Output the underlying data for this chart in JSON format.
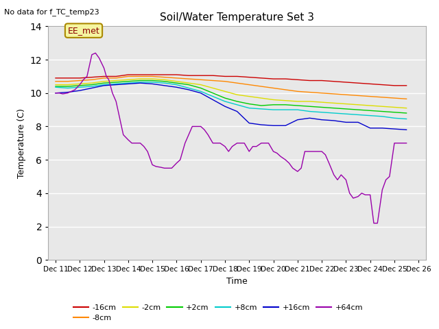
{
  "title": "Soil/Water Temperature Set 3",
  "subtitle": "No data for f_TC_temp23",
  "xlabel": "Time",
  "ylabel": "Temperature (C)",
  "ylim": [
    0,
    14
  ],
  "yticks": [
    0,
    2,
    4,
    6,
    8,
    10,
    12,
    14
  ],
  "annotation_box": "EE_met",
  "bg_color": "#ffffff",
  "plot_bg_color": "#e8e8e8",
  "grid_color": "#ffffff",
  "xtick_labels": [
    "Dec 11",
    "Dec 12",
    "Dec 13",
    "Dec 14",
    "Dec 15",
    "Dec 16",
    "Dec 17",
    "Dec 18",
    "Dec 19",
    "Dec 20",
    "Dec 21",
    "Dec 22",
    "Dec 23",
    "Dec 24",
    "Dec 25",
    "Dec 26"
  ],
  "series": [
    {
      "label": "-16cm",
      "color": "#cc0000",
      "x": [
        0,
        0.5,
        1,
        1.5,
        2,
        2.5,
        3,
        3.5,
        4,
        4.5,
        5,
        5.5,
        6,
        6.5,
        7,
        7.5,
        8,
        8.5,
        9,
        9.5,
        10,
        10.5,
        11,
        11.5,
        12,
        12.5,
        13,
        13.5,
        14,
        14.5
      ],
      "y": [
        10.9,
        10.9,
        10.9,
        10.95,
        11.0,
        11.0,
        11.1,
        11.1,
        11.1,
        11.1,
        11.1,
        11.05,
        11.05,
        11.05,
        11.0,
        11.0,
        10.95,
        10.9,
        10.85,
        10.85,
        10.8,
        10.75,
        10.75,
        10.7,
        10.65,
        10.6,
        10.55,
        10.5,
        10.45,
        10.45
      ]
    },
    {
      "label": "-8cm",
      "color": "#ff8800",
      "x": [
        0,
        0.5,
        1,
        1.5,
        2,
        2.5,
        3,
        3.5,
        4,
        4.5,
        5,
        5.5,
        6,
        6.5,
        7,
        7.5,
        8,
        8.5,
        9,
        9.5,
        10,
        10.5,
        11,
        11.5,
        12,
        12.5,
        13,
        13.5,
        14,
        14.5
      ],
      "y": [
        10.7,
        10.7,
        10.75,
        10.8,
        10.9,
        10.9,
        11.0,
        11.0,
        11.0,
        10.95,
        10.9,
        10.85,
        10.8,
        10.75,
        10.7,
        10.6,
        10.5,
        10.4,
        10.3,
        10.2,
        10.1,
        10.05,
        10.0,
        9.95,
        9.9,
        9.85,
        9.8,
        9.75,
        9.7,
        9.65
      ]
    },
    {
      "label": "-2cm",
      "color": "#dddd00",
      "x": [
        0,
        0.5,
        1,
        1.5,
        2,
        2.5,
        3,
        3.5,
        4,
        4.5,
        5,
        5.5,
        6,
        6.5,
        7,
        7.5,
        8,
        8.5,
        9,
        9.5,
        10,
        10.5,
        11,
        11.5,
        12,
        12.5,
        13,
        13.5,
        14,
        14.5
      ],
      "y": [
        10.5,
        10.5,
        10.55,
        10.6,
        10.7,
        10.75,
        10.8,
        10.85,
        10.85,
        10.8,
        10.7,
        10.6,
        10.5,
        10.3,
        10.1,
        9.9,
        9.8,
        9.7,
        9.6,
        9.55,
        9.5,
        9.5,
        9.45,
        9.4,
        9.35,
        9.3,
        9.25,
        9.2,
        9.15,
        9.1
      ]
    },
    {
      "label": "+2cm",
      "color": "#00cc00",
      "x": [
        0,
        0.5,
        1,
        1.5,
        2,
        2.5,
        3,
        3.5,
        4,
        4.5,
        5,
        5.5,
        6,
        6.5,
        7,
        7.5,
        8,
        8.5,
        9,
        9.5,
        10,
        10.5,
        11,
        11.5,
        12,
        12.5,
        13,
        13.5,
        14,
        14.5
      ],
      "y": [
        10.4,
        10.4,
        10.45,
        10.5,
        10.6,
        10.65,
        10.7,
        10.75,
        10.75,
        10.7,
        10.6,
        10.5,
        10.3,
        10.0,
        9.7,
        9.5,
        9.35,
        9.25,
        9.3,
        9.3,
        9.25,
        9.2,
        9.15,
        9.1,
        9.05,
        9.0,
        8.95,
        8.9,
        8.85,
        8.8
      ]
    },
    {
      "label": "+8cm",
      "color": "#00cccc",
      "x": [
        0,
        0.5,
        1,
        1.5,
        2,
        2.5,
        3,
        3.5,
        4,
        4.5,
        5,
        5.5,
        6,
        6.5,
        7,
        7.5,
        8,
        8.5,
        9,
        9.5,
        10,
        10.5,
        11,
        11.5,
        12,
        12.5,
        13,
        13.5,
        14,
        14.5
      ],
      "y": [
        10.35,
        10.3,
        10.35,
        10.4,
        10.5,
        10.55,
        10.6,
        10.65,
        10.65,
        10.6,
        10.5,
        10.3,
        10.1,
        9.8,
        9.5,
        9.3,
        9.1,
        9.05,
        9.0,
        9.0,
        9.0,
        8.9,
        8.85,
        8.8,
        8.75,
        8.7,
        8.65,
        8.6,
        8.5,
        8.45
      ]
    },
    {
      "label": "+16cm",
      "color": "#0000cc",
      "x": [
        0,
        0.5,
        1,
        1.5,
        2,
        2.5,
        3,
        3.5,
        4,
        4.5,
        5,
        5.5,
        6,
        6.5,
        7,
        7.5,
        8,
        8.5,
        9,
        9.5,
        10,
        10.5,
        11,
        11.5,
        12,
        12.5,
        13,
        13.5,
        14,
        14.5
      ],
      "y": [
        10.0,
        10.05,
        10.15,
        10.3,
        10.45,
        10.5,
        10.55,
        10.6,
        10.55,
        10.45,
        10.35,
        10.2,
        10.0,
        9.6,
        9.2,
        8.9,
        8.2,
        8.1,
        8.05,
        8.05,
        8.4,
        8.5,
        8.4,
        8.35,
        8.25,
        8.25,
        7.9,
        7.9,
        7.85,
        7.8
      ]
    },
    {
      "label": "+64cm",
      "color": "#9900aa",
      "x": [
        0,
        0.15,
        0.3,
        0.5,
        0.65,
        0.8,
        1.0,
        1.15,
        1.3,
        1.5,
        1.65,
        1.8,
        2.0,
        2.1,
        2.2,
        2.35,
        2.5,
        2.65,
        2.8,
        3.0,
        3.15,
        3.3,
        3.5,
        3.65,
        3.8,
        4.0,
        4.15,
        4.35,
        4.5,
        4.65,
        4.8,
        5.0,
        5.15,
        5.35,
        5.5,
        5.65,
        5.8,
        6.0,
        6.15,
        6.3,
        6.5,
        6.65,
        6.8,
        7.0,
        7.15,
        7.3,
        7.5,
        7.65,
        7.8,
        8.0,
        8.15,
        8.3,
        8.5,
        8.65,
        8.8,
        9.0,
        9.15,
        9.3,
        9.5,
        9.65,
        9.8,
        10.0,
        10.15,
        10.3,
        10.5,
        10.65,
        10.8,
        11.0,
        11.15,
        11.3,
        11.5,
        11.65,
        11.8,
        12.0,
        12.15,
        12.3,
        12.5,
        12.65,
        12.8,
        13.0,
        13.15,
        13.3,
        13.5,
        13.65,
        13.8,
        14.0,
        14.15,
        14.3,
        14.5
      ],
      "y": [
        10.0,
        10.0,
        9.95,
        10.0,
        10.1,
        10.2,
        10.5,
        10.8,
        11.0,
        12.3,
        12.4,
        12.1,
        11.5,
        11.0,
        10.8,
        10.0,
        9.5,
        8.5,
        7.5,
        7.2,
        7.0,
        7.0,
        7.0,
        6.8,
        6.5,
        5.7,
        5.6,
        5.55,
        5.5,
        5.5,
        5.5,
        5.8,
        6.0,
        7.0,
        7.5,
        8.0,
        8.0,
        8.0,
        7.8,
        7.5,
        7.0,
        7.0,
        7.0,
        6.8,
        6.5,
        6.8,
        7.0,
        7.0,
        7.0,
        6.5,
        6.8,
        6.8,
        7.0,
        7.0,
        7.0,
        6.5,
        6.4,
        6.2,
        6.0,
        5.8,
        5.5,
        5.3,
        5.5,
        6.5,
        6.5,
        6.5,
        6.5,
        6.5,
        6.3,
        5.8,
        5.1,
        4.8,
        5.1,
        4.8,
        4.0,
        3.7,
        3.8,
        4.0,
        3.9,
        3.9,
        2.2,
        2.2,
        4.2,
        4.8,
        5.0,
        7.0,
        7.0,
        7.0,
        7.0
      ]
    }
  ]
}
